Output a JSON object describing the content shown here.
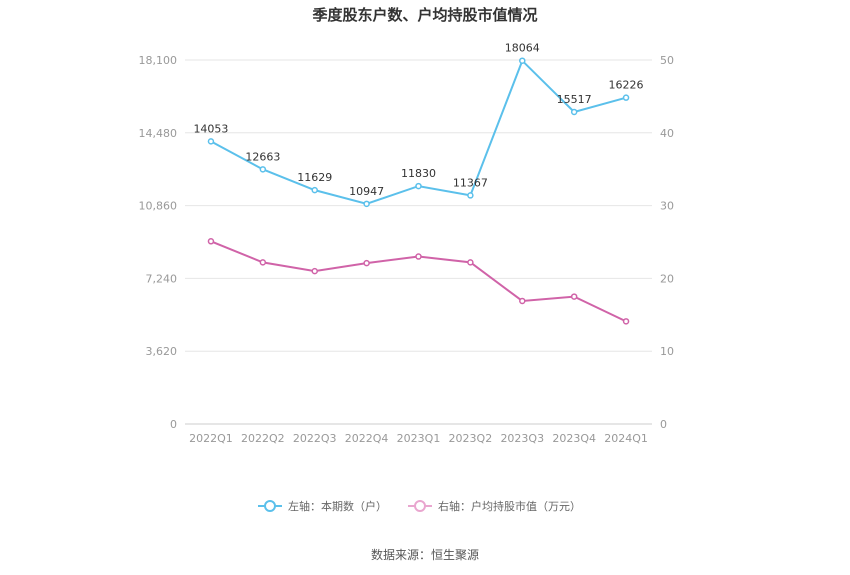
{
  "chart_data": {
    "type": "line",
    "title": "季度股东户数、户均持股市值情况",
    "categories": [
      "2022Q1",
      "2022Q2",
      "2022Q3",
      "2022Q4",
      "2023Q1",
      "2023Q2",
      "2023Q3",
      "2023Q4",
      "2024Q1"
    ],
    "left_axis": {
      "min": 0,
      "max": 18100,
      "ticks": [
        "0",
        "3,620",
        "7,240",
        "10,860",
        "14,480",
        "18,100"
      ]
    },
    "right_axis": {
      "min": 0,
      "max": 50,
      "ticks": [
        "0",
        "10",
        "20",
        "30",
        "40",
        "50"
      ]
    },
    "series": [
      {
        "name": "左轴：本期数（户）",
        "axis": "left",
        "color": "#5bc0eb",
        "values": [
          14053,
          12663,
          11629,
          10947,
          11830,
          11367,
          18064,
          15517,
          16226
        ],
        "labels": [
          "14053",
          "12663",
          "11629",
          "10947",
          "11830",
          "11367",
          "18064",
          "15517",
          "16226"
        ]
      },
      {
        "name": "右轴：户均持股市值（万元）",
        "axis": "right",
        "color": "#d063a8",
        "legend_color": "#e9a6cf",
        "values": [
          25.1,
          22.2,
          21.0,
          22.1,
          23.0,
          22.2,
          16.9,
          17.5,
          14.1
        ]
      }
    ],
    "grid": true,
    "legend_position": "bottom"
  },
  "source": "数据来源：恒生聚源"
}
